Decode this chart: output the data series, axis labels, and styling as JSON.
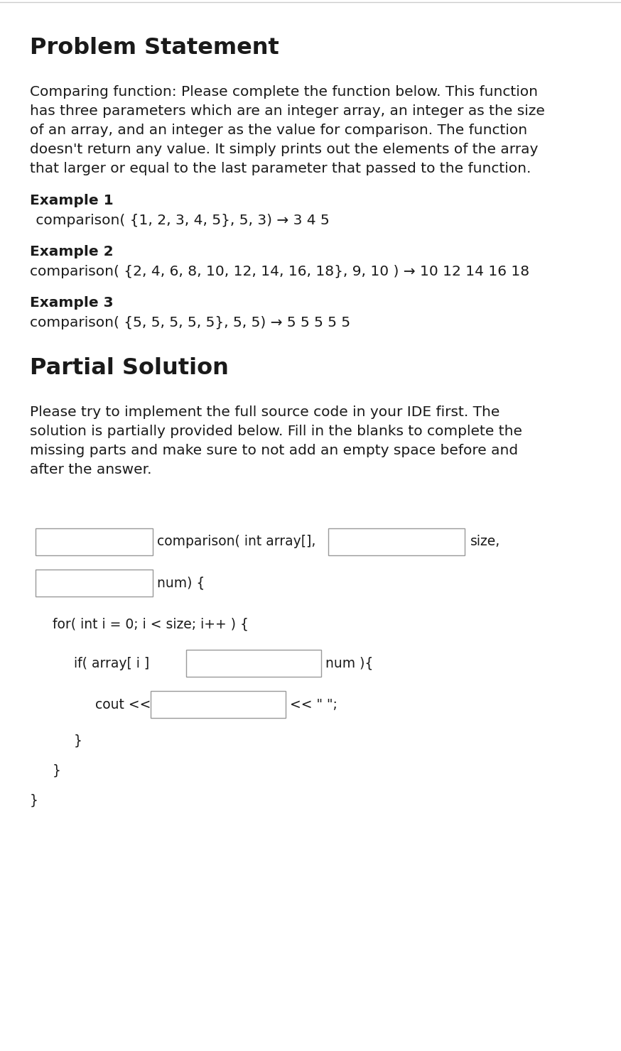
{
  "bg_color": "#ffffff",
  "border_color": "#cccccc",
  "title": "Problem Statement",
  "description": "Comparing function: Please complete the function below. This function\nhas three parameters which are an integer array, an integer as the size\nof an array, and an integer as the value for comparison. The function\ndoesn't return any value. It simply prints out the elements of the array\nthat larger or equal to the last parameter that passed to the function.",
  "example1_label": "Example 1",
  "example1_text": " comparison( {1, 2, 3, 4, 5}, 5, 3) → 3 4 5",
  "example2_label": "Example 2",
  "example2_text": "comparison( {2, 4, 6, 8, 10, 12, 14, 16, 18}, 9, 10 ) → 10 12 14 16 18",
  "example3_label": "Example 3",
  "example3_text": "comparison( {5, 5, 5, 5, 5}, 5, 5) → 5 5 5 5 5",
  "partial_title": "Partial Solution",
  "partial_desc": "Please try to implement the full source code in your IDE first. The\nsolution is partially provided below. Fill in the blanks to complete the\nmissing parts and make sure to not add an empty space before and\nafter the answer.",
  "code_line1_pre": "comparison( int array[],",
  "code_line1_post": "size,",
  "code_line2_post": "num) {",
  "code_line3": "for( int i = 0; i < size; i++ ) {",
  "code_line4_pre": "if( array[ i ]",
  "code_line4_post": "num ){",
  "code_line5_pre": "cout <<",
  "code_line5_post": "<< \" \";",
  "code_line6": "}",
  "code_line7": "}",
  "code_line8": "}",
  "box_color": "#ffffff",
  "box_border": "#999999",
  "text_color": "#1a1a1a",
  "code_font_size": 13.5,
  "body_font_size": 14.5,
  "title_font_size": 23
}
